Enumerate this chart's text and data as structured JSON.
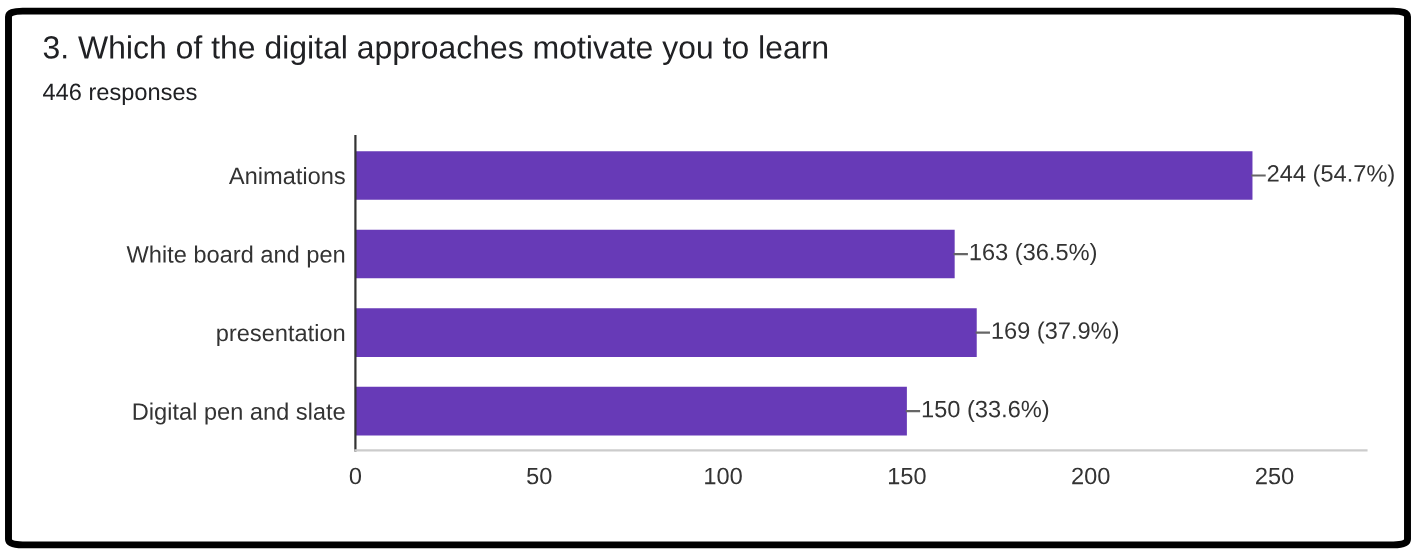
{
  "chart_data": {
    "type": "bar",
    "orientation": "horizontal",
    "title": "3. Which of the digital approaches motivate you to learn",
    "subtitle": "446 responses",
    "categories": [
      "Animations",
      "White board and pen",
      "presentation",
      "Digital pen and slate"
    ],
    "values": [
      244,
      163,
      169,
      150
    ],
    "value_labels": [
      "244 (54.7%)",
      "163 (36.5%)",
      "169 (37.9%)",
      "150 (33.6%)"
    ],
    "color": "#673ab7",
    "xlim": [
      0,
      275
    ],
    "xticks": [
      0,
      50,
      100,
      150,
      200,
      250
    ],
    "grid": false,
    "legend": false
  }
}
